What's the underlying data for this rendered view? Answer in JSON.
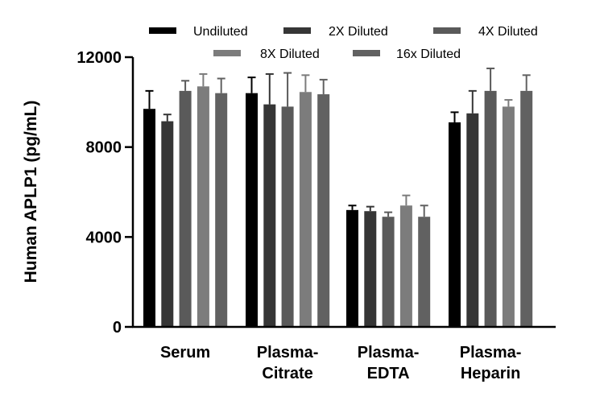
{
  "chart_data": {
    "type": "bar",
    "title": "",
    "xlabel": "",
    "ylabel": "Human APLP1 (pg/mL)",
    "ylim": [
      0,
      12000
    ],
    "yticks": [
      "0",
      "4000",
      "8000",
      "12000"
    ],
    "categories": [
      [
        "Serum"
      ],
      [
        "Plasma-",
        "Citrate"
      ],
      [
        "Plasma-",
        "EDTA"
      ],
      [
        "Plasma-",
        "Heparin"
      ]
    ],
    "series": [
      {
        "name": "Undiluted",
        "color": "#000000",
        "values": [
          9700,
          10400,
          5200,
          9100
        ],
        "errors": [
          800,
          700,
          200,
          450
        ]
      },
      {
        "name": "2X Diluted",
        "color": "#363636",
        "values": [
          9150,
          9900,
          5150,
          9500
        ],
        "errors": [
          300,
          1350,
          200,
          1000
        ]
      },
      {
        "name": "4X Diluted",
        "color": "#5a5a5a",
        "values": [
          10500,
          9800,
          4900,
          10500
        ],
        "errors": [
          450,
          1500,
          200,
          1000
        ]
      },
      {
        "name": "8X Diluted",
        "color": "#7c7c7c",
        "values": [
          10700,
          10450,
          5400,
          9800
        ],
        "errors": [
          550,
          750,
          450,
          300
        ]
      },
      {
        "name": "16x Diluted",
        "color": "#616161",
        "values": [
          10400,
          10350,
          4900,
          10500
        ],
        "errors": [
          650,
          650,
          500,
          700
        ]
      }
    ],
    "legend": "top",
    "grid": false
  }
}
